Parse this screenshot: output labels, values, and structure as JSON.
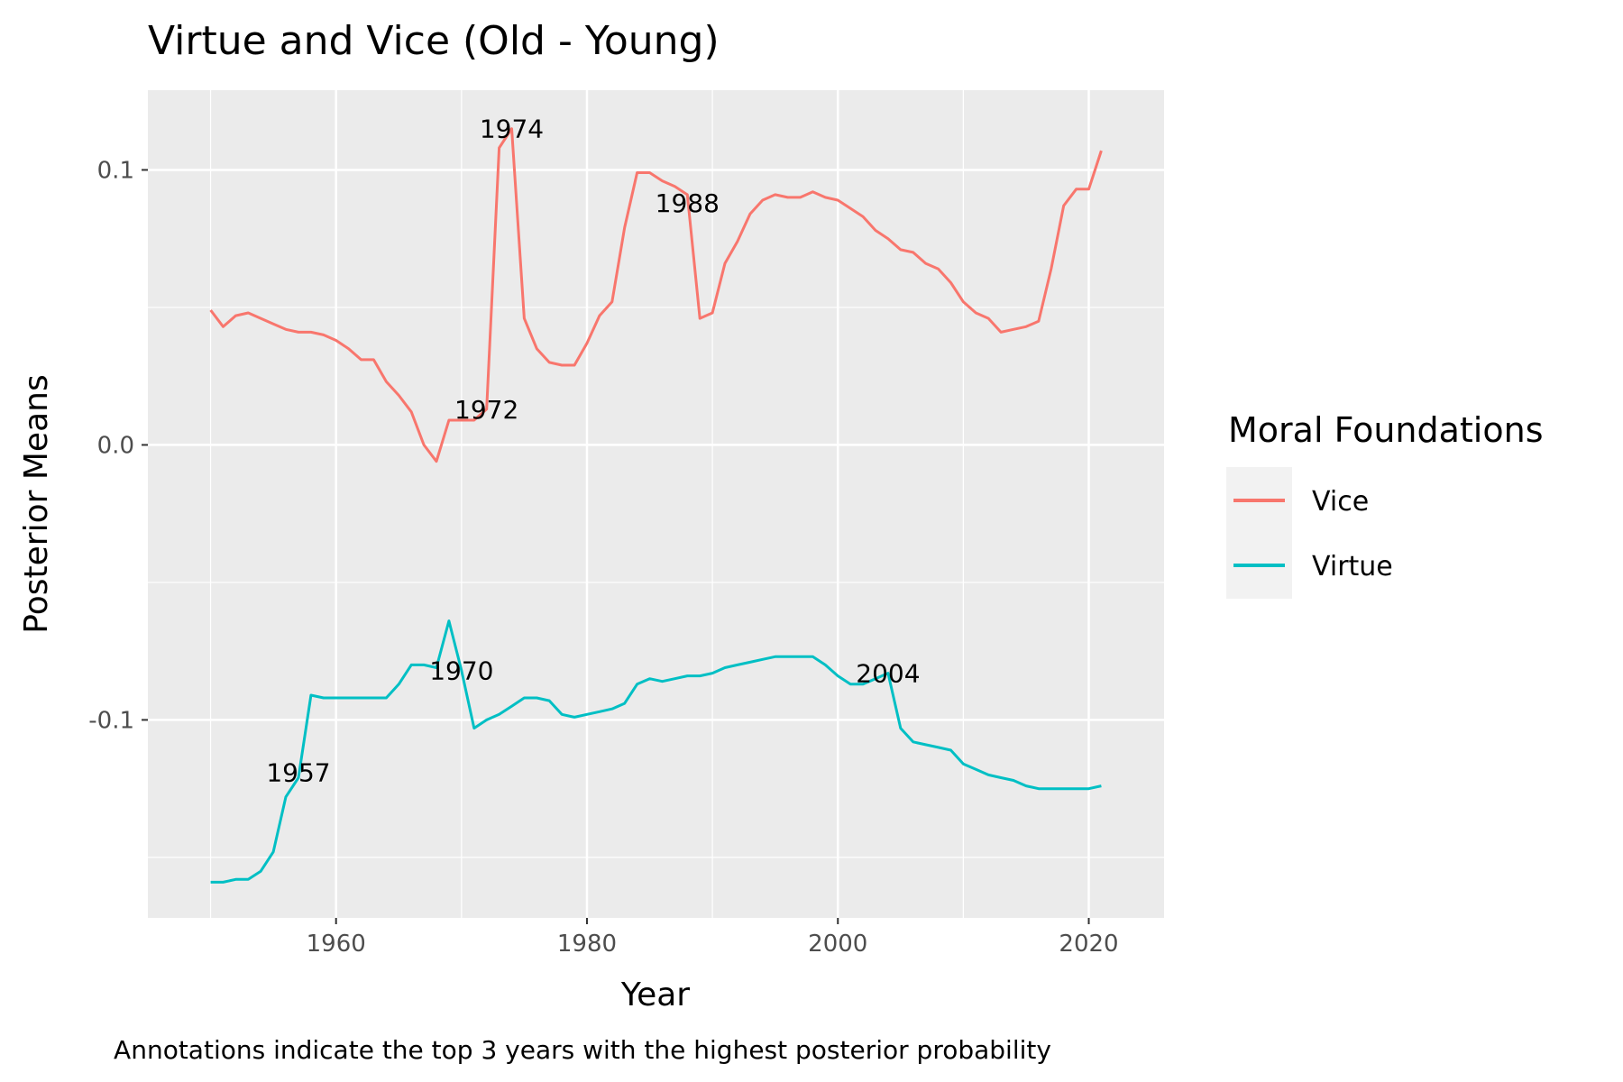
{
  "chart_data": {
    "type": "line",
    "title": "Virtue and Vice (Old - Young)",
    "xlabel": "Year",
    "ylabel": "Posterior Means",
    "caption": "Annotations indicate the top 3 years with the highest posterior probability",
    "xlim": [
      1945,
      2026
    ],
    "ylim": [
      -0.172,
      0.129
    ],
    "x_ticks": [
      1960,
      1980,
      2000,
      2020
    ],
    "x_tick_labels": [
      "1960",
      "1980",
      "2000",
      "2020"
    ],
    "y_ticks": [
      0.1,
      0.0,
      -0.1
    ],
    "y_tick_labels": [
      "0.1",
      "0.0",
      "-0.1"
    ],
    "grid": true,
    "legend": {
      "title": "Moral Foundations",
      "position": "right"
    },
    "x": [
      1950,
      1951,
      1952,
      1953,
      1954,
      1955,
      1956,
      1957,
      1958,
      1959,
      1960,
      1961,
      1962,
      1963,
      1964,
      1965,
      1966,
      1967,
      1968,
      1969,
      1970,
      1971,
      1972,
      1973,
      1974,
      1975,
      1976,
      1977,
      1978,
      1979,
      1980,
      1981,
      1982,
      1983,
      1984,
      1985,
      1986,
      1987,
      1988,
      1989,
      1990,
      1991,
      1992,
      1993,
      1994,
      1995,
      1996,
      1997,
      1998,
      1999,
      2000,
      2001,
      2002,
      2003,
      2004,
      2005,
      2006,
      2007,
      2008,
      2009,
      2010,
      2011,
      2012,
      2013,
      2014,
      2015,
      2016,
      2017,
      2018,
      2019,
      2020,
      2021
    ],
    "series": [
      {
        "name": "Vice",
        "color": "#F8766D",
        "values": [
          0.049,
          0.043,
          0.047,
          0.048,
          0.046,
          0.044,
          0.042,
          0.041,
          0.041,
          0.04,
          0.038,
          0.035,
          0.031,
          0.031,
          0.023,
          0.018,
          0.012,
          0.0,
          -0.006,
          0.009,
          0.009,
          0.009,
          0.013,
          0.108,
          0.115,
          0.046,
          0.035,
          0.03,
          0.029,
          0.029,
          0.037,
          0.047,
          0.052,
          0.079,
          0.099,
          0.099,
          0.096,
          0.094,
          0.091,
          0.046,
          0.048,
          0.066,
          0.074,
          0.084,
          0.089,
          0.091,
          0.09,
          0.09,
          0.092,
          0.09,
          0.089,
          0.086,
          0.083,
          0.078,
          0.075,
          0.071,
          0.07,
          0.066,
          0.064,
          0.059,
          0.052,
          0.048,
          0.046,
          0.041,
          0.042,
          0.043,
          0.045,
          0.064,
          0.087,
          0.093,
          0.093,
          0.107
        ]
      },
      {
        "name": "Virtue",
        "color": "#00BFC4",
        "values": [
          -0.159,
          -0.159,
          -0.158,
          -0.158,
          -0.155,
          -0.148,
          -0.128,
          -0.121,
          -0.091,
          -0.092,
          -0.092,
          -0.092,
          -0.092,
          -0.092,
          -0.092,
          -0.087,
          -0.08,
          -0.08,
          -0.081,
          -0.064,
          -0.082,
          -0.103,
          -0.1,
          -0.098,
          -0.095,
          -0.092,
          -0.092,
          -0.093,
          -0.098,
          -0.099,
          -0.098,
          -0.097,
          -0.096,
          -0.094,
          -0.087,
          -0.085,
          -0.086,
          -0.085,
          -0.084,
          -0.084,
          -0.083,
          -0.081,
          -0.08,
          -0.079,
          -0.078,
          -0.077,
          -0.077,
          -0.077,
          -0.077,
          -0.08,
          -0.084,
          -0.087,
          -0.087,
          -0.085,
          -0.083,
          -0.103,
          -0.108,
          -0.109,
          -0.11,
          -0.111,
          -0.116,
          -0.118,
          -0.12,
          -0.121,
          -0.122,
          -0.124,
          -0.125,
          -0.125,
          -0.125,
          -0.125,
          -0.125,
          -0.124
        ]
      }
    ],
    "annotations": [
      {
        "label": "1974",
        "x": 1974,
        "y": 0.115
      },
      {
        "label": "1988",
        "x": 1988,
        "y": 0.088
      },
      {
        "label": "1972",
        "x": 1972,
        "y": 0.013
      },
      {
        "label": "1970",
        "x": 1970,
        "y": -0.082
      },
      {
        "label": "2004",
        "x": 2004,
        "y": -0.083
      },
      {
        "label": "1957",
        "x": 1957,
        "y": -0.119
      }
    ]
  }
}
